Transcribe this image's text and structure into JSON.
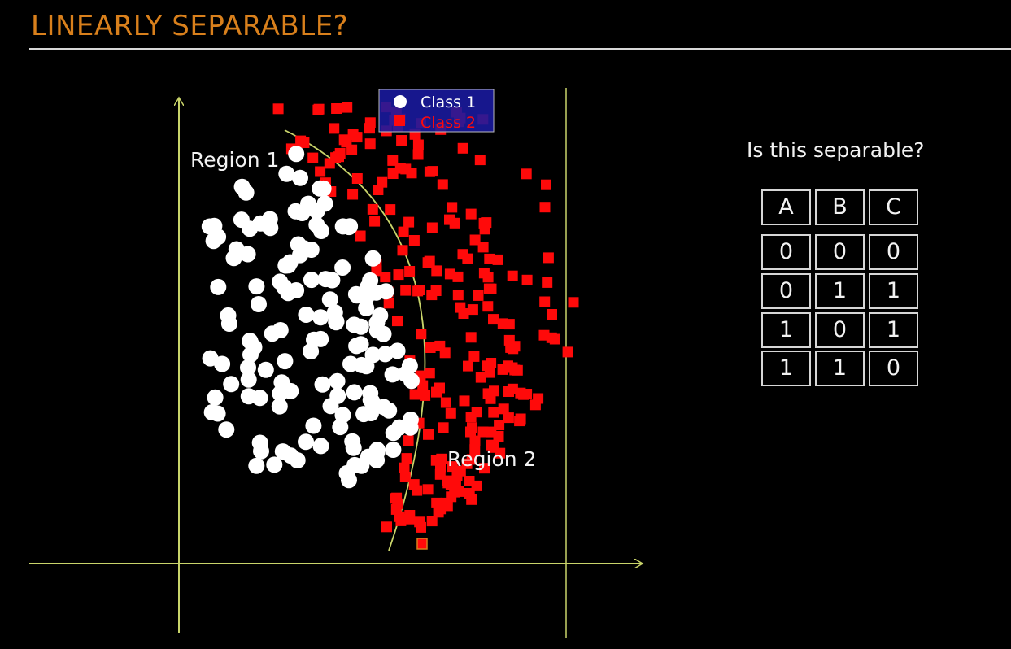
{
  "title": "LINEARLY SEPARABLE?",
  "colors": {
    "title": "#d9801c",
    "axis": "#c9d46a",
    "class1": "#ffffff",
    "class2": "#ff0a0a",
    "legend_bg": "#1a1aa0"
  },
  "plot": {
    "legend": [
      {
        "label": "Class 1",
        "marker": "circle",
        "color": "#ffffff"
      },
      {
        "label": "Class 2",
        "marker": "square",
        "color": "#ff0a0a"
      }
    ],
    "region_labels": [
      "Region 1",
      "Region 2"
    ]
  },
  "question": "Is this separable?",
  "table": {
    "headers": [
      "A",
      "B",
      "C"
    ],
    "rows": [
      [
        "0",
        "0",
        "0"
      ],
      [
        "0",
        "1",
        "1"
      ],
      [
        "1",
        "0",
        "1"
      ],
      [
        "1",
        "1",
        "0"
      ]
    ]
  }
}
